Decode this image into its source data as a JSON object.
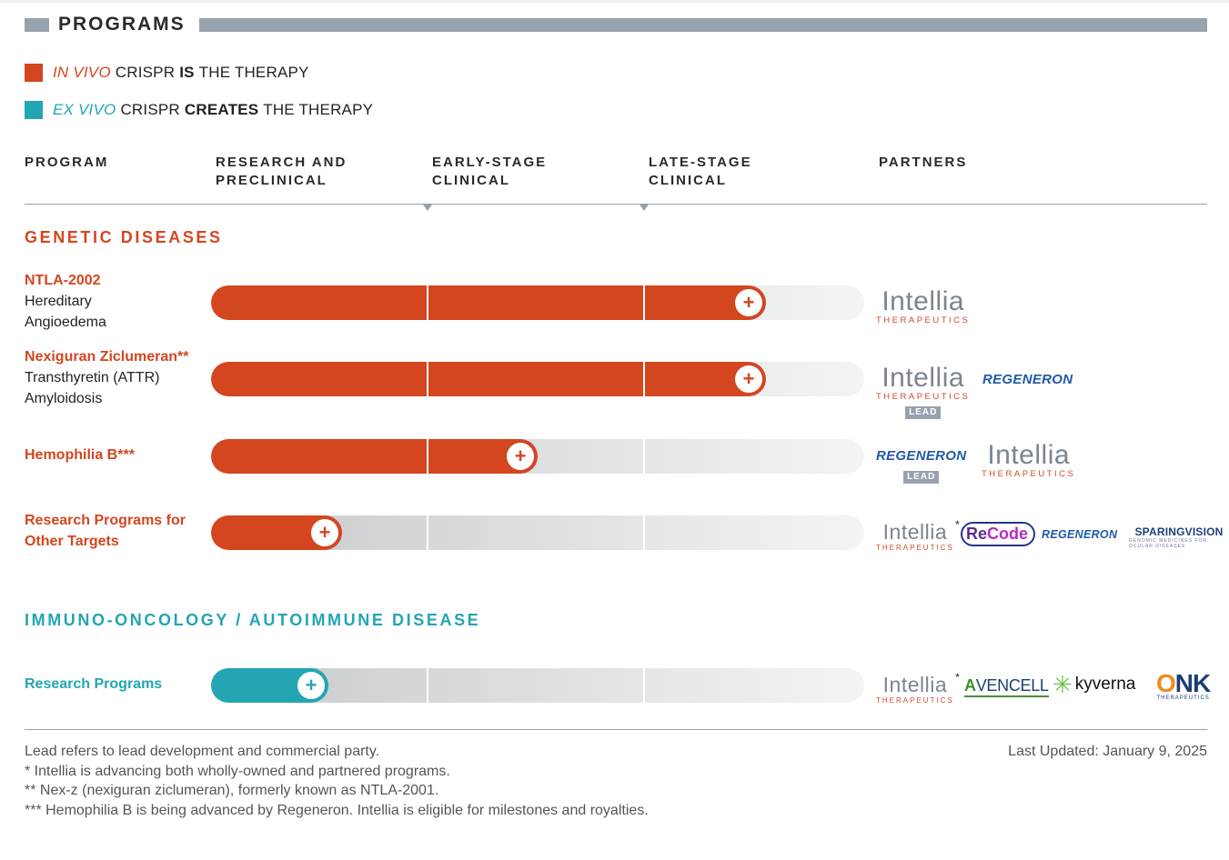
{
  "header": {
    "title": "PROGRAMS"
  },
  "colors": {
    "in_vivo": "#d3461f",
    "ex_vivo": "#23a5b3",
    "rule": "#98a2ae"
  },
  "legend": {
    "in_vivo": {
      "emphasis": "IN VIVO",
      "pre": "CRISPR",
      "bold": "IS",
      "post": "THE THERAPY"
    },
    "ex_vivo": {
      "emphasis": "EX VIVO",
      "pre": "CRISPR",
      "bold": "CREATES",
      "post": "THE THERAPY"
    }
  },
  "columns": {
    "program": "PROGRAM",
    "research": [
      "RESEARCH AND",
      "PRECLINICAL"
    ],
    "early": [
      "EARLY-STAGE",
      "CLINICAL"
    ],
    "late": [
      "LATE-STAGE",
      "CLINICAL"
    ],
    "partners": "PARTNERS"
  },
  "sections": {
    "genetic": "GENETIC DISEASES",
    "immuno": "IMMUNO-ONCOLOGY / AUTOIMMUNE DISEASE"
  },
  "programs": [
    {
      "name": "NTLA-2002",
      "desc": [
        "Hereditary",
        "Angioedema"
      ],
      "progress": 0.85,
      "type": "in_vivo"
    },
    {
      "name": "Nexiguran Ziclumeran**",
      "desc": [
        "Transthyretin (ATTR)",
        "Amyloidosis"
      ],
      "progress": 0.85,
      "type": "in_vivo"
    },
    {
      "name": "Hemophilia B***",
      "desc": [],
      "progress": 0.5,
      "type": "in_vivo"
    },
    {
      "name": "Research Programs for Other Targets",
      "desc": [],
      "progress": 0.2,
      "type": "in_vivo"
    },
    {
      "name": "Research Programs",
      "desc": [],
      "progress": 0.18,
      "type": "ex_vivo"
    }
  ],
  "plus_glyph": "+",
  "partners": {
    "intellia": {
      "main": "Intellia",
      "sub": "THERAPEUTICS",
      "star": "*"
    },
    "lead": "LEAD",
    "regeneron": "REGENERON",
    "recode": {
      "re": "Re",
      "code": "Code"
    },
    "sparingvision": {
      "main": "SPARINGVISION",
      "sub": "GENOMIC MEDICINES FOR OCULAR DISEASES"
    },
    "avencell": {
      "a": "A",
      "rest": "VENCELL"
    },
    "kyverna": {
      "icon": "✳",
      "text": "kyverna"
    },
    "onk": {
      "o": "O",
      "nk": "NK",
      "sub": "THERAPEUTICS"
    }
  },
  "footer": {
    "notes": [
      "Lead refers to lead development and commercial party.",
      "* Intellia is advancing both wholly-owned and partnered programs.",
      "** Nex-z (nexiguran ziclumeran), formerly known as NTLA-2001.",
      "*** Hemophilia B is being advanced by Regeneron. Intellia is eligible for milestones and royalties."
    ],
    "updated": "Last Updated: January 9, 2025"
  }
}
